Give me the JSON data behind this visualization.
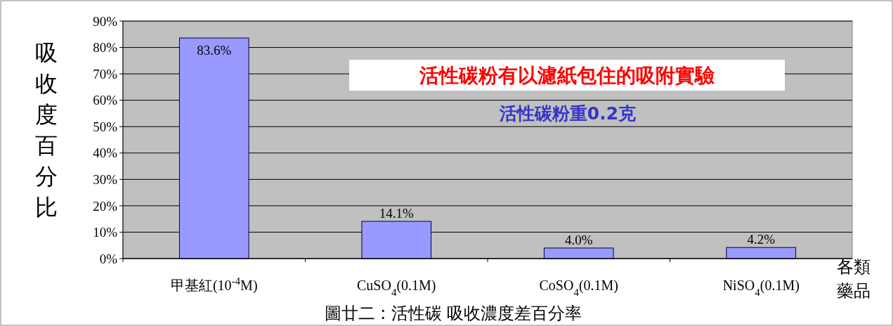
{
  "chart_data": {
    "type": "bar",
    "title": "活性碳粉有以濾紙包住的吸附實驗",
    "subtitle": "活性碳粉重0.2克",
    "ylabel": "吸收度百分比",
    "xlabel": "各類藥品",
    "annotations": [
      "圖廿二 : 活性碳 吸收濃度差百分率"
    ],
    "categories": [
      "甲基紅(10$^{-4}$M)",
      "CuSO$_{4}$(0.1M)",
      "CoSO$_{4}$(0.1M)",
      "NiSO$_{4}$(0.1M)"
    ],
    "values": [
      83.6,
      14.1,
      4.0,
      4.2
    ],
    "value_labels": [
      "83.6%",
      "14.1%",
      "4.0%",
      "4.2%"
    ],
    "color": "#9999ff",
    "ylim": [
      0,
      90
    ],
    "yticks": [
      {
        "value": 0,
        "label": "0%"
      },
      {
        "value": 10,
        "label": "10%"
      },
      {
        "value": 20,
        "label": "20%"
      },
      {
        "value": 30,
        "label": "30%"
      },
      {
        "value": 40,
        "label": "40%"
      },
      {
        "value": 50,
        "label": "50%"
      },
      {
        "value": 60,
        "label": "60%"
      },
      {
        "value": 70,
        "label": "70%"
      },
      {
        "value": 80,
        "label": "80%"
      },
      {
        "value": 90,
        "label": "90%"
      }
    ],
    "grid": "y"
  }
}
